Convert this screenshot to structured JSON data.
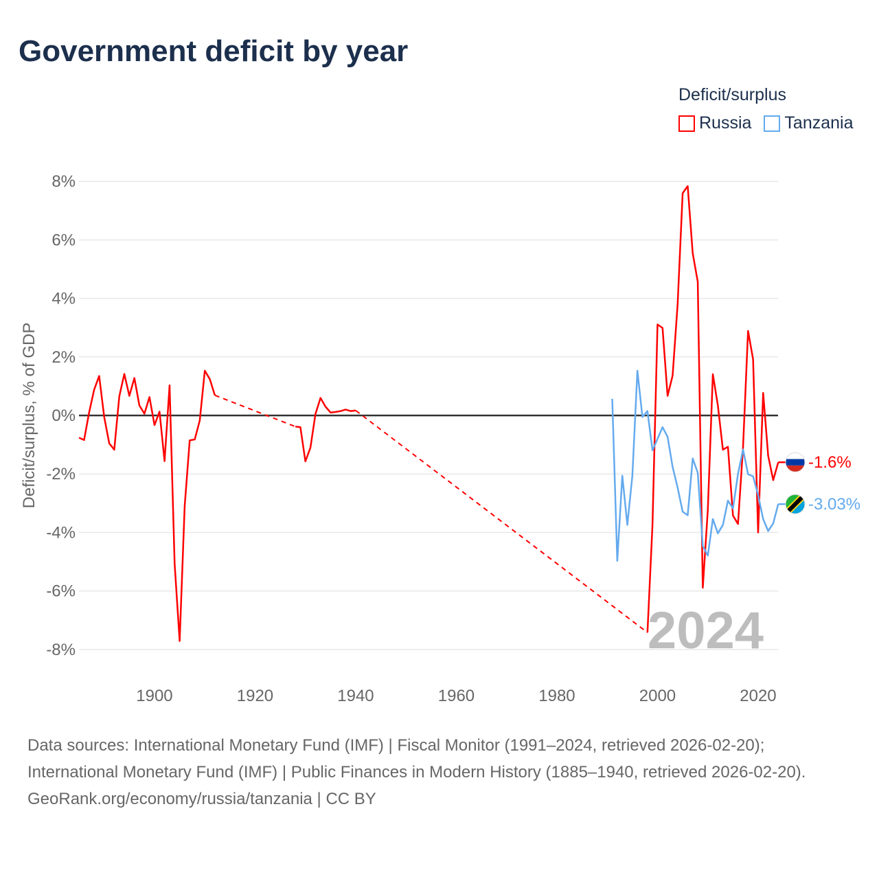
{
  "title": "Government deficit by year",
  "legend": {
    "title": "Deficit/surplus",
    "items": [
      {
        "label": "Russia",
        "color": "#ff0000"
      },
      {
        "label": "Tanzania",
        "color": "#64aaee"
      }
    ]
  },
  "chart_data": {
    "type": "line",
    "title": "Government deficit by year",
    "xlabel": "",
    "ylabel": "Deficit/surplus, % of GDP",
    "xlim": [
      1885,
      2024
    ],
    "ylim": [
      -8,
      8
    ],
    "x_ticks": [
      "1900",
      "1920",
      "1940",
      "1960",
      "1980",
      "2000",
      "2020"
    ],
    "y_ticks": [
      "8%",
      "6%",
      "4%",
      "2%",
      "0%",
      "-2%",
      "-4%",
      "-6%",
      "-8%"
    ],
    "watermark_year": "2024",
    "legend_placement": "top-right",
    "series": [
      {
        "name": "Russia",
        "color": "#ff0000",
        "end_label": "-1.6%",
        "points": [
          [
            1885,
            -0.76
          ],
          [
            1886,
            -0.84
          ],
          [
            1887,
            0.1
          ],
          [
            1888,
            0.88
          ],
          [
            1889,
            1.35
          ],
          [
            1890,
            -0.05
          ],
          [
            1891,
            -0.95
          ],
          [
            1892,
            -1.17
          ],
          [
            1893,
            0.65
          ],
          [
            1894,
            1.42
          ],
          [
            1895,
            0.67
          ],
          [
            1896,
            1.28
          ],
          [
            1897,
            0.34
          ],
          [
            1898,
            0.06
          ],
          [
            1899,
            0.63
          ],
          [
            1900,
            -0.33
          ],
          [
            1901,
            0.13
          ],
          [
            1902,
            -1.56
          ],
          [
            1903,
            1.03
          ],
          [
            1904,
            -5.06
          ],
          [
            1905,
            -7.71
          ],
          [
            1906,
            -3.1
          ],
          [
            1907,
            -0.85
          ],
          [
            1908,
            -0.82
          ],
          [
            1909,
            -0.17
          ],
          [
            1910,
            1.53
          ],
          [
            1911,
            1.24
          ],
          [
            1912,
            0.69
          ],
          [
            1928,
            -0.38
          ],
          [
            1929,
            -0.4
          ],
          [
            1930,
            -1.57
          ],
          [
            1931,
            -1.1
          ],
          [
            1932,
            0.05
          ],
          [
            1933,
            0.6
          ],
          [
            1934,
            0.3
          ],
          [
            1935,
            0.1
          ],
          [
            1936,
            0.12
          ],
          [
            1937,
            0.15
          ],
          [
            1938,
            0.2
          ],
          [
            1939,
            0.15
          ],
          [
            1940,
            0.17
          ],
          [
            1998,
            -7.42
          ],
          [
            1999,
            -3.74
          ],
          [
            2000,
            3.11
          ],
          [
            2001,
            2.99
          ],
          [
            2002,
            0.67
          ],
          [
            2003,
            1.36
          ],
          [
            2004,
            3.81
          ],
          [
            2005,
            7.6
          ],
          [
            2006,
            7.84
          ],
          [
            2007,
            5.54
          ],
          [
            2008,
            4.57
          ],
          [
            2009,
            -5.89
          ],
          [
            2010,
            -3.23
          ],
          [
            2011,
            1.41
          ],
          [
            2012,
            0.34
          ],
          [
            2013,
            -1.17
          ],
          [
            2014,
            -1.07
          ],
          [
            2015,
            -3.42
          ],
          [
            2016,
            -3.71
          ],
          [
            2017,
            -1.09
          ],
          [
            2018,
            2.89
          ],
          [
            2019,
            1.92
          ],
          [
            2020,
            -4.0
          ],
          [
            2021,
            0.77
          ],
          [
            2022,
            -1.38
          ],
          [
            2023,
            -2.21
          ],
          [
            2024,
            -1.6
          ]
        ]
      },
      {
        "name": "Tanzania",
        "color": "#64aaee",
        "end_label": "-3.03%",
        "points": [
          [
            1991,
            0.57
          ],
          [
            1992,
            -4.97
          ],
          [
            1993,
            -2.06
          ],
          [
            1994,
            -3.74
          ],
          [
            1995,
            -2.06
          ],
          [
            1996,
            1.53
          ],
          [
            1997,
            -0.05
          ],
          [
            1998,
            0.15
          ],
          [
            1999,
            -1.19
          ],
          [
            2000,
            -0.8
          ],
          [
            2001,
            -0.4
          ],
          [
            2002,
            -0.73
          ],
          [
            2003,
            -1.76
          ],
          [
            2004,
            -2.47
          ],
          [
            2005,
            -3.29
          ],
          [
            2006,
            -3.41
          ],
          [
            2007,
            -1.47
          ],
          [
            2008,
            -1.96
          ],
          [
            2009,
            -4.46
          ],
          [
            2010,
            -4.79
          ],
          [
            2011,
            -3.54
          ],
          [
            2012,
            -4.03
          ],
          [
            2013,
            -3.74
          ],
          [
            2014,
            -2.91
          ],
          [
            2015,
            -3.18
          ],
          [
            2016,
            -2.0
          ],
          [
            2017,
            -1.16
          ],
          [
            2018,
            -2.01
          ],
          [
            2019,
            -2.08
          ],
          [
            2020,
            -2.72
          ],
          [
            2021,
            -3.54
          ],
          [
            2022,
            -3.95
          ],
          [
            2023,
            -3.69
          ],
          [
            2024,
            -3.03
          ]
        ]
      }
    ]
  },
  "sources": {
    "line1": "Data sources: International Monetary Fund (IMF) | Fiscal Monitor (1991–2024, retrieved 2026-02-20); International Monetary Fund (IMF) | Public Finances in Modern History (1885–1940, retrieved 2026-02-20).",
    "line2": "GeoRank.org/economy/russia/tanzania | CC BY"
  }
}
